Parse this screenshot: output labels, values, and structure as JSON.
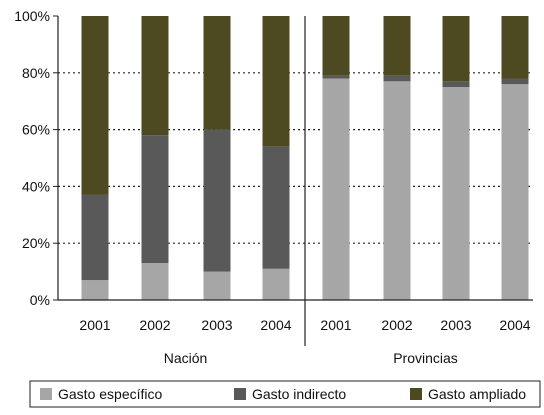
{
  "chart_data": {
    "type": "bar",
    "stacked": true,
    "percent_stacked": true,
    "groups": [
      {
        "label": "Nación",
        "categories": [
          "2001",
          "2002",
          "2003",
          "2004"
        ]
      },
      {
        "label": "Provincias",
        "categories": [
          "2001",
          "2002",
          "2003",
          "2004"
        ]
      }
    ],
    "series": [
      {
        "name": "Gasto específico",
        "color": "#a6a6a6",
        "values": [
          7,
          13,
          10,
          11,
          78,
          77,
          75,
          76
        ]
      },
      {
        "name": "Gasto indirecto",
        "color": "#595959",
        "values": [
          30,
          45,
          50,
          43,
          1,
          2,
          2,
          2
        ]
      },
      {
        "name": "Gasto ampliado",
        "color": "#4d4a22",
        "values": [
          63,
          42,
          40,
          46,
          21,
          21,
          23,
          22
        ]
      }
    ],
    "y_ticks": [
      "0%",
      "20%",
      "40%",
      "60%",
      "80%",
      "100%"
    ],
    "ylim": [
      0,
      100
    ],
    "grid": "dotted horizontal",
    "legend_position": "bottom"
  }
}
